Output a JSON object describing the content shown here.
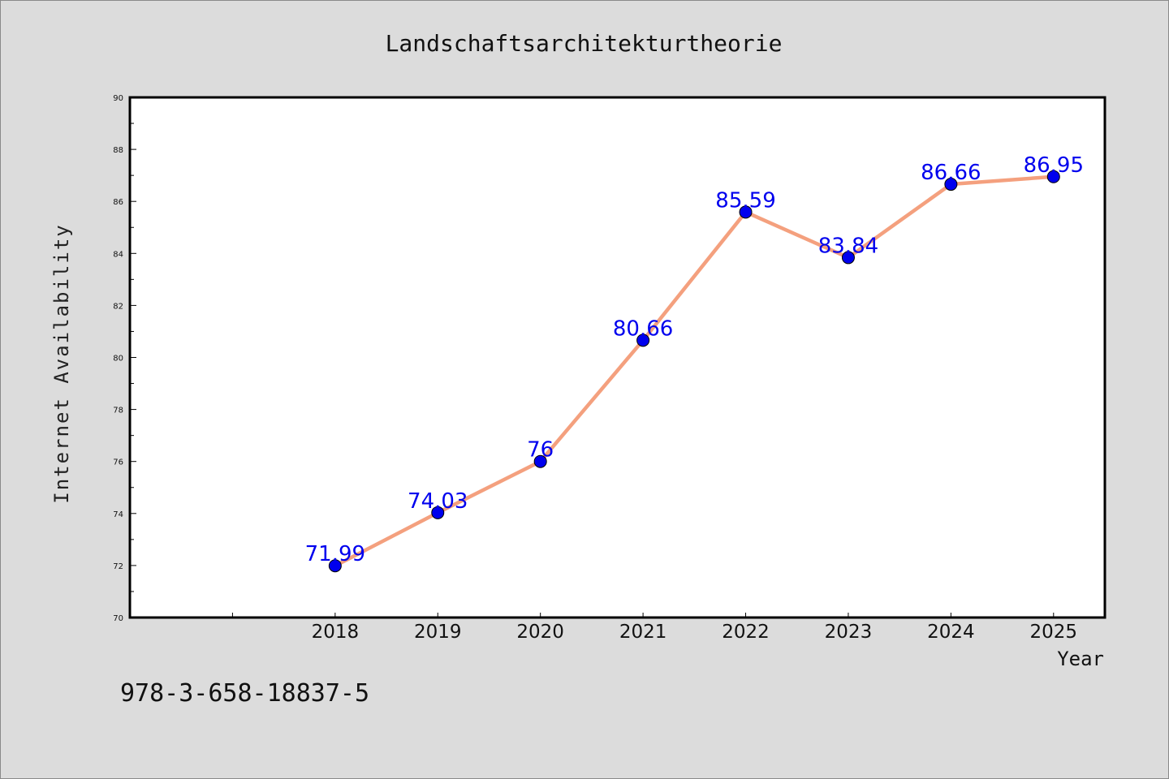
{
  "chart_data": {
    "type": "line",
    "title": "Landschaftsarchitekturtheorie",
    "xlabel": "Year",
    "ylabel": "Internet Availability",
    "x": [
      "2018",
      "2019",
      "2020",
      "2021",
      "2022",
      "2023",
      "2024",
      "2025"
    ],
    "x_axis_range": [
      2016,
      2025.5
    ],
    "ylim": [
      70,
      90
    ],
    "ytick_step": 2,
    "grid": false,
    "legend": "none",
    "series": [
      {
        "values": [
          71.99,
          74.03,
          76,
          80.66,
          85.59,
          83.84,
          86.66,
          86.95
        ],
        "data_labels": [
          "71.99",
          "74.03",
          "76",
          "80.66",
          "85.59",
          "83.84",
          "86.66",
          "86.95"
        ]
      }
    ],
    "colors": {
      "line": "#f4a07e",
      "marker": "#0000ee",
      "data_label": "#0000ee",
      "plot_bg": "#ffffff",
      "page_bg": "#dcdcdc"
    }
  },
  "footer": {
    "isbn": "978-3-658-18837-5"
  }
}
